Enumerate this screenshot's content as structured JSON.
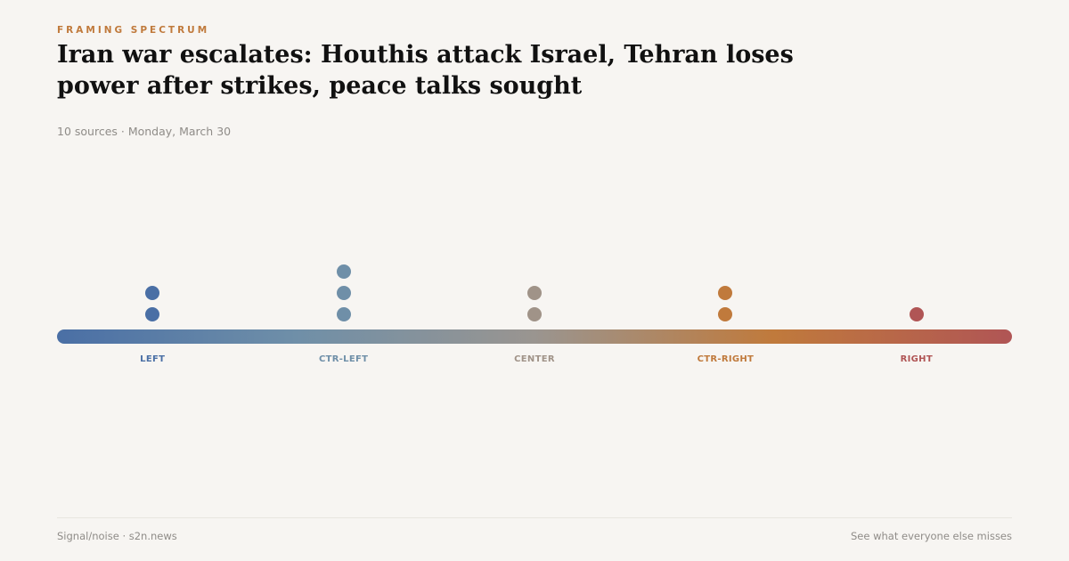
{
  "kicker": "FRAMING SPECTRUM",
  "headline": "Iran war escalates: Houthis attack Israel, Tehran loses power after strikes, peace talks sought",
  "meta": "10 sources · Monday, March 30",
  "spectrum": {
    "gradient": [
      "#4a6fa5",
      "#6f8fa8",
      "#9a9590",
      "#c07a3c",
      "#b05555"
    ],
    "positions": [
      {
        "label": "LEFT",
        "count": 2,
        "color": "#4a6fa5"
      },
      {
        "label": "CTR-LEFT",
        "count": 3,
        "color": "#6f8fa8"
      },
      {
        "label": "CENTER",
        "count": 2,
        "color": "#a09388"
      },
      {
        "label": "CTR-RIGHT",
        "count": 2,
        "color": "#c07a3c"
      },
      {
        "label": "RIGHT",
        "count": 1,
        "color": "#b05555"
      }
    ]
  },
  "footer": {
    "brand": "Signal/noise · s2n.news",
    "tagline": "See what everyone else misses"
  }
}
